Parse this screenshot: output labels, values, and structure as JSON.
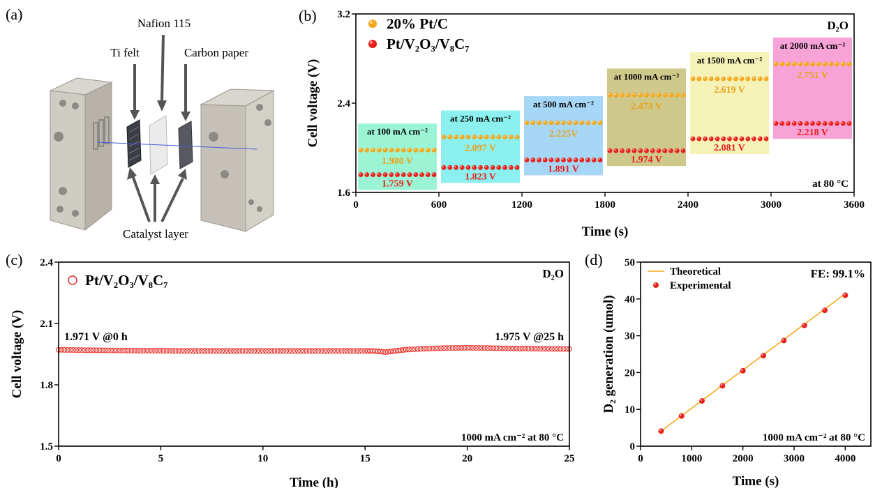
{
  "panel_a": {
    "label": "(a)",
    "callouts": {
      "ti_felt": "Ti felt",
      "nafion": "Nafion 115",
      "carbon_paper": "Carbon paper",
      "catalyst_layer": "Catalyst layer"
    }
  },
  "chart_data": [
    {
      "panel": "(b)",
      "type": "line",
      "xlabel": "Time (s)",
      "ylabel": "Cell voltage (V)",
      "xlim": [
        0,
        3600
      ],
      "ylim": [
        1.6,
        3.2
      ],
      "xticks": [
        "0",
        "600",
        "1200",
        "1800",
        "2400",
        "3000",
        "3600"
      ],
      "yticks": [
        "1.6",
        "2.4",
        "3.2"
      ],
      "legend_position": "top-left",
      "top_right_label": "D₂O",
      "bottom_right_label": "at 80 °C",
      "series": [
        {
          "name": "20% Pt/C",
          "color": "#F2A81B"
        },
        {
          "name": "Pt/V₂O₃/V₈C₇",
          "color": "#E8211B"
        }
      ],
      "segments": [
        {
          "label": "at 100 mA cm⁻²",
          "x0": 0,
          "x1": 600,
          "fill": "#9BF5D5",
          "pt": 1.98,
          "pt_label": "1.980 V",
          "cat": 1.759,
          "cat_label": "1.759 V"
        },
        {
          "label": "at 250 mA cm⁻²",
          "x0": 600,
          "x1": 1200,
          "fill": "#8CF0F0",
          "pt": 2.097,
          "pt_label": "2.097 V",
          "cat": 1.823,
          "cat_label": "1.823 V"
        },
        {
          "label": "at 500 mA cm⁻²",
          "x0": 1200,
          "x1": 1800,
          "fill": "#A7D7F7",
          "pt": 2.225,
          "pt_label": "2.225V",
          "cat": 1.891,
          "cat_label": "1.891 V"
        },
        {
          "label": "at 1000 mA cm⁻²",
          "x0": 1800,
          "x1": 2400,
          "fill": "#CFC88B",
          "pt": 2.473,
          "pt_label": "2.473 V",
          "cat": 1.974,
          "cat_label": "1.974 V"
        },
        {
          "label": "at 1500 mA cm⁻²",
          "x0": 2400,
          "x1": 3000,
          "fill": "#F5F2B8",
          "pt": 2.619,
          "pt_label": "2.619 V",
          "cat": 2.081,
          "cat_label": "2.081 V"
        },
        {
          "label": "at 2000 mA cm⁻²",
          "x0": 3000,
          "x1": 3600,
          "fill": "#F7A3D7",
          "pt": 2.751,
          "pt_label": "2.751 V",
          "cat": 2.218,
          "cat_label": "2.218 V"
        }
      ]
    },
    {
      "panel": "(c)",
      "type": "scatter",
      "xlabel": "Time (h)",
      "ylabel": "Cell voltage (V)",
      "xlim": [
        0,
        25
      ],
      "ylim": [
        1.5,
        2.4
      ],
      "xticks": [
        "0",
        "5",
        "10",
        "15",
        "20",
        "25"
      ],
      "yticks": [
        "1.5",
        "1.8",
        "2.1",
        "2.4"
      ],
      "legend_position": "top-left",
      "top_right_label": "D₂O",
      "bottom_right_label": "1000 mA cm⁻² at 80 °C",
      "start_annotation": "1.971 V @0 h",
      "end_annotation": "1.975 V @25 h",
      "series": [
        {
          "name": "Pt/V₂O₃/V₈C₇",
          "color": "#E8211B",
          "points": [
            [
              0,
              1.971
            ],
            [
              1,
              1.97
            ],
            [
              2,
              1.969
            ],
            [
              3,
              1.968
            ],
            [
              4,
              1.967
            ],
            [
              5,
              1.967
            ],
            [
              6,
              1.966
            ],
            [
              7,
              1.966
            ],
            [
              8,
              1.966
            ],
            [
              9,
              1.966
            ],
            [
              10,
              1.966
            ],
            [
              11,
              1.966
            ],
            [
              12,
              1.966
            ],
            [
              13,
              1.966
            ],
            [
              14,
              1.966
            ],
            [
              15,
              1.966
            ],
            [
              15.5,
              1.965
            ],
            [
              16,
              1.96
            ],
            [
              16.5,
              1.966
            ],
            [
              17,
              1.972
            ],
            [
              18,
              1.977
            ],
            [
              19,
              1.98
            ],
            [
              20,
              1.981
            ],
            [
              21,
              1.98
            ],
            [
              22,
              1.978
            ],
            [
              23,
              1.977
            ],
            [
              24,
              1.976
            ],
            [
              25,
              1.975
            ]
          ]
        }
      ]
    },
    {
      "panel": "(d)",
      "type": "scatter",
      "xlabel": "Time (s)",
      "ylabel": "D₂ generation (umol)",
      "xlim": [
        0,
        4500
      ],
      "ylim": [
        0,
        50
      ],
      "xticks": [
        "0",
        "1000",
        "2000",
        "3000",
        "4000"
      ],
      "yticks": [
        "0",
        "10",
        "20",
        "30",
        "40",
        "50"
      ],
      "legend_position": "top-left",
      "top_right_label": "FE: 99.1%",
      "bottom_right_label": "1000 mA cm⁻² at 80 °C",
      "series": [
        {
          "name": "Theoretical",
          "color": "#F2A81B",
          "line": [
            [
              400,
              4.1
            ],
            [
              4000,
              41.4
            ]
          ]
        },
        {
          "name": "Experimental",
          "color": "#E8211B",
          "x": [
            400,
            800,
            1200,
            1600,
            2000,
            2400,
            2800,
            3200,
            3600,
            4000
          ],
          "y": [
            4.1,
            8.2,
            12.3,
            16.4,
            20.5,
            24.6,
            28.7,
            32.8,
            36.9,
            41.0
          ]
        }
      ]
    }
  ]
}
